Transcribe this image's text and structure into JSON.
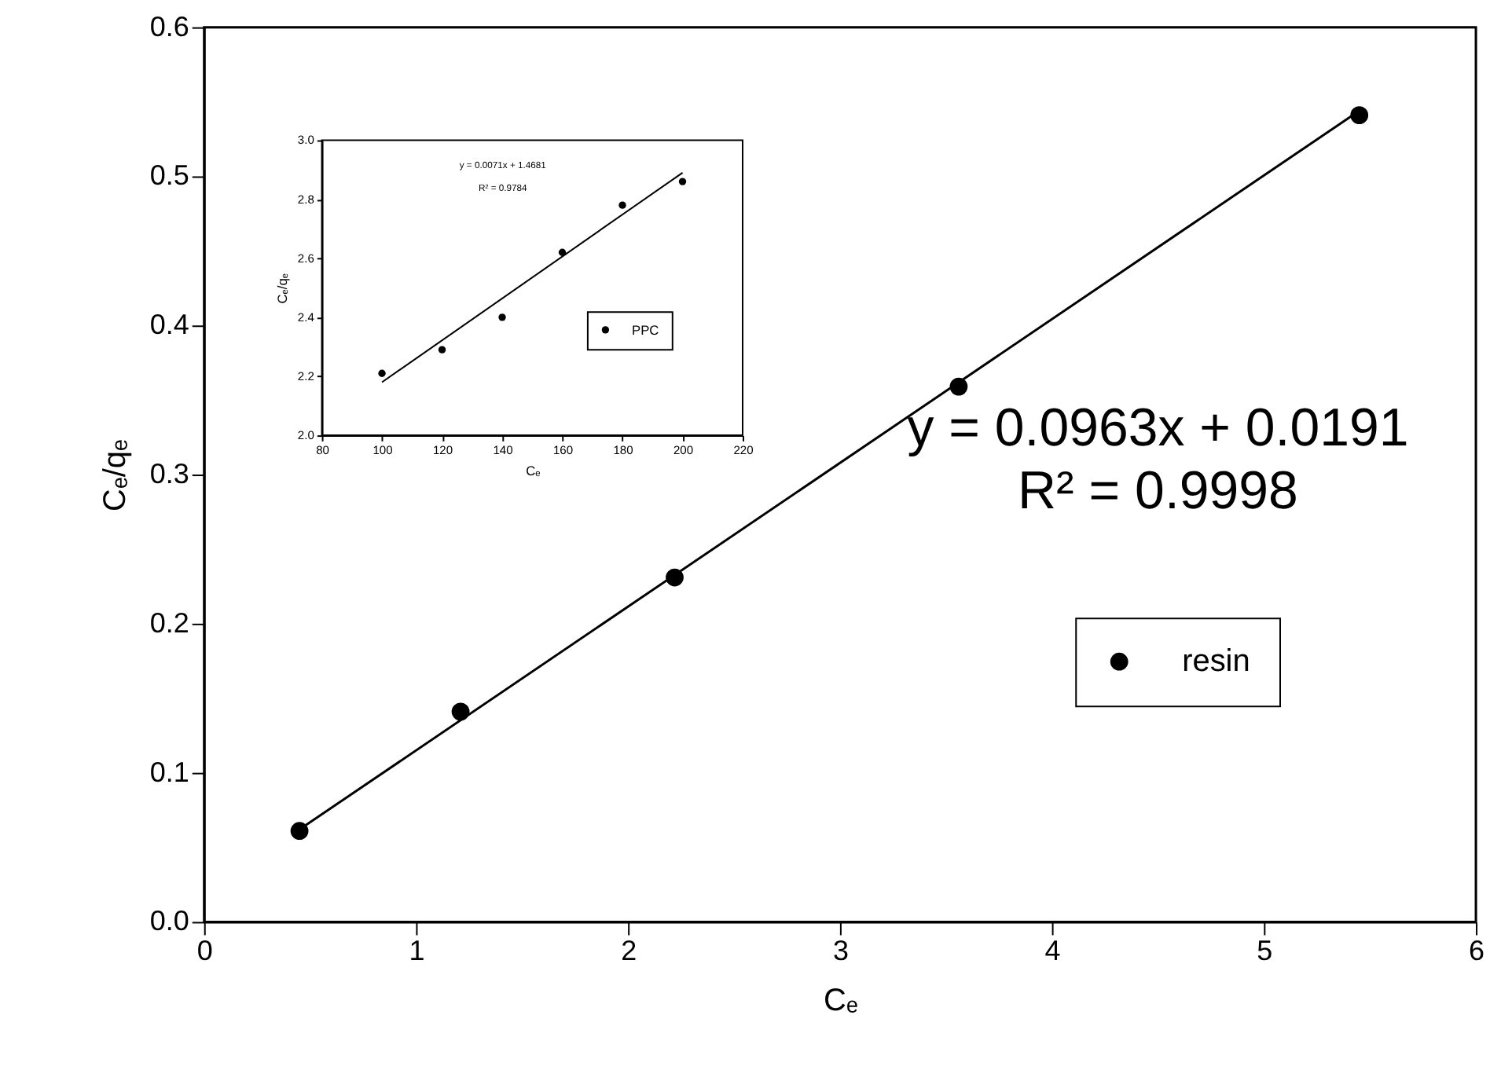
{
  "chart_data": [
    {
      "type": "scatter",
      "xlabel": "Cₑ",
      "ylabel": "Cₑ/qₑ",
      "xlim": [
        0,
        6
      ],
      "xticks": [
        0,
        1,
        2,
        3,
        4,
        5,
        6
      ],
      "ylim": [
        0,
        0.6
      ],
      "yticks": [
        {
          "value": 0,
          "label": "0.0"
        },
        0.1,
        0.2,
        0.3,
        0.4,
        0.5,
        0.6
      ],
      "series": [
        {
          "name": "resin",
          "color": "#000000",
          "marker": "circle",
          "x": [
            0.45,
            1.21,
            2.22,
            3.56,
            5.45
          ],
          "values": [
            0.061,
            0.141,
            0.231,
            0.359,
            0.541
          ]
        },
        {
          "type": "line",
          "color": "#000000",
          "marker": "none",
          "line_style": "solid",
          "x": [
            0.45,
            5.45
          ],
          "values": [
            0.062,
            0.544
          ]
        }
      ],
      "legend": "bottom right",
      "grid": false,
      "annotations": [
        "y = 0.0963x + 0.0191",
        "R² = 0.9998"
      ]
    },
    {
      "type": "scatter",
      "xlabel": "Cₑ",
      "ylabel": "Cₑ/qₑ",
      "xlim": [
        80,
        220
      ],
      "xticks": [
        80,
        100,
        120,
        140,
        160,
        180,
        200,
        220
      ],
      "ylim": [
        2.0,
        3.0
      ],
      "yticks": [
        {
          "value": 2,
          "label": "2.0"
        },
        2.2,
        2.4,
        2.6,
        2.8,
        {
          "value": 3,
          "label": "3.0"
        }
      ],
      "series": [
        {
          "name": "PPC",
          "color": "#000000",
          "marker": "circle",
          "x": [
            100,
            120,
            140,
            160,
            180,
            200
          ],
          "values": [
            2.21,
            2.29,
            2.4,
            2.62,
            2.78,
            2.86
          ]
        },
        {
          "type": "line",
          "color": "#000000",
          "marker": "none",
          "line_style": "solid",
          "x": [
            100,
            200
          ],
          "values": [
            2.18,
            2.89
          ]
        }
      ],
      "legend": "right",
      "grid": false,
      "annotations": [
        "y = 0.0071x + 1.4681",
        "R² = 0.9784"
      ]
    }
  ]
}
